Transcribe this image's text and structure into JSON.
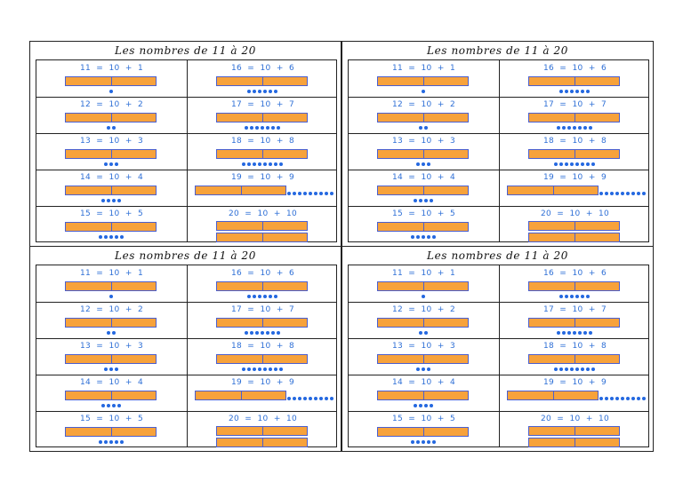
{
  "title": "Les nombres de 11 à 20",
  "colors": {
    "bar_fill": "#f7a23b",
    "bar_border": "#4a5fd0",
    "dot": "#2468e0",
    "equation": "#2e6fd6"
  },
  "rows": [
    {
      "left": {
        "equation": "11  =  10  +  1",
        "units": 1
      },
      "right": {
        "equation": "16  =  10  +  6",
        "units": 6
      }
    },
    {
      "left": {
        "equation": "12  =  10  +  2",
        "units": 2
      },
      "right": {
        "equation": "17  =  10  +  7",
        "units": 7
      }
    },
    {
      "left": {
        "equation": "13  =  10  +  3",
        "units": 3
      },
      "right": {
        "equation": "18  =  10  +  8",
        "units": 8
      }
    },
    {
      "left": {
        "equation": "14  =  10  +  4",
        "units": 4
      },
      "right": {
        "equation": "19  =  10  +  9",
        "units": 9
      }
    },
    {
      "left": {
        "equation": "15  =  10  +  5",
        "units": 5
      },
      "right": {
        "equation": "20  =  10  +  10",
        "units": 10
      }
    }
  ]
}
